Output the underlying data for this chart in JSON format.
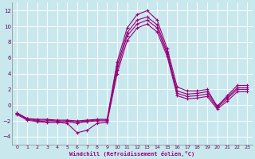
{
  "xlabel": "Windchill (Refroidissement éolien,°C)",
  "background_color": "#c8e8ee",
  "grid_color": "#ffffff",
  "line_color": "#990077",
  "x": [
    0,
    1,
    2,
    3,
    4,
    5,
    6,
    7,
    8,
    9,
    10,
    11,
    12,
    13,
    14,
    15,
    16,
    17,
    18,
    19,
    20,
    21,
    22,
    23
  ],
  "lines": [
    [
      -1.0,
      -1.7,
      -1.8,
      -1.8,
      -1.9,
      -1.9,
      -2.0,
      -1.9,
      -1.8,
      -1.8,
      5.5,
      9.8,
      11.5,
      12.0,
      10.8,
      7.2,
      2.3,
      1.8,
      1.8,
      2.0,
      -0.2,
      1.2,
      2.5,
      2.5
    ],
    [
      -1.0,
      -1.7,
      -1.9,
      -1.9,
      -2.0,
      -2.0,
      -2.1,
      -2.0,
      -1.9,
      -1.9,
      5.0,
      9.2,
      10.8,
      11.2,
      10.2,
      6.8,
      1.8,
      1.4,
      1.5,
      1.7,
      -0.1,
      1.0,
      2.2,
      2.2
    ],
    [
      -1.1,
      -1.8,
      -2.0,
      -2.1,
      -2.1,
      -2.1,
      -2.3,
      -2.1,
      -2.0,
      -2.0,
      4.5,
      8.8,
      10.3,
      10.8,
      9.8,
      6.5,
      1.5,
      1.1,
      1.2,
      1.4,
      -0.3,
      0.8,
      2.0,
      2.0
    ],
    [
      -1.2,
      -1.9,
      -2.1,
      -2.2,
      -2.2,
      -2.3,
      -3.5,
      -3.2,
      -2.3,
      -2.2,
      4.0,
      8.2,
      9.8,
      10.3,
      9.3,
      6.2,
      1.2,
      0.8,
      0.9,
      1.1,
      -0.5,
      0.5,
      1.7,
      1.7
    ]
  ],
  "ylim": [
    -5,
    13
  ],
  "xlim": [
    -0.5,
    23.5
  ],
  "yticks": [
    -4,
    -2,
    0,
    2,
    4,
    6,
    8,
    10,
    12
  ],
  "xticks": [
    0,
    1,
    2,
    3,
    4,
    5,
    6,
    7,
    8,
    9,
    10,
    11,
    12,
    13,
    14,
    15,
    16,
    17,
    18,
    19,
    20,
    21,
    22,
    23
  ]
}
